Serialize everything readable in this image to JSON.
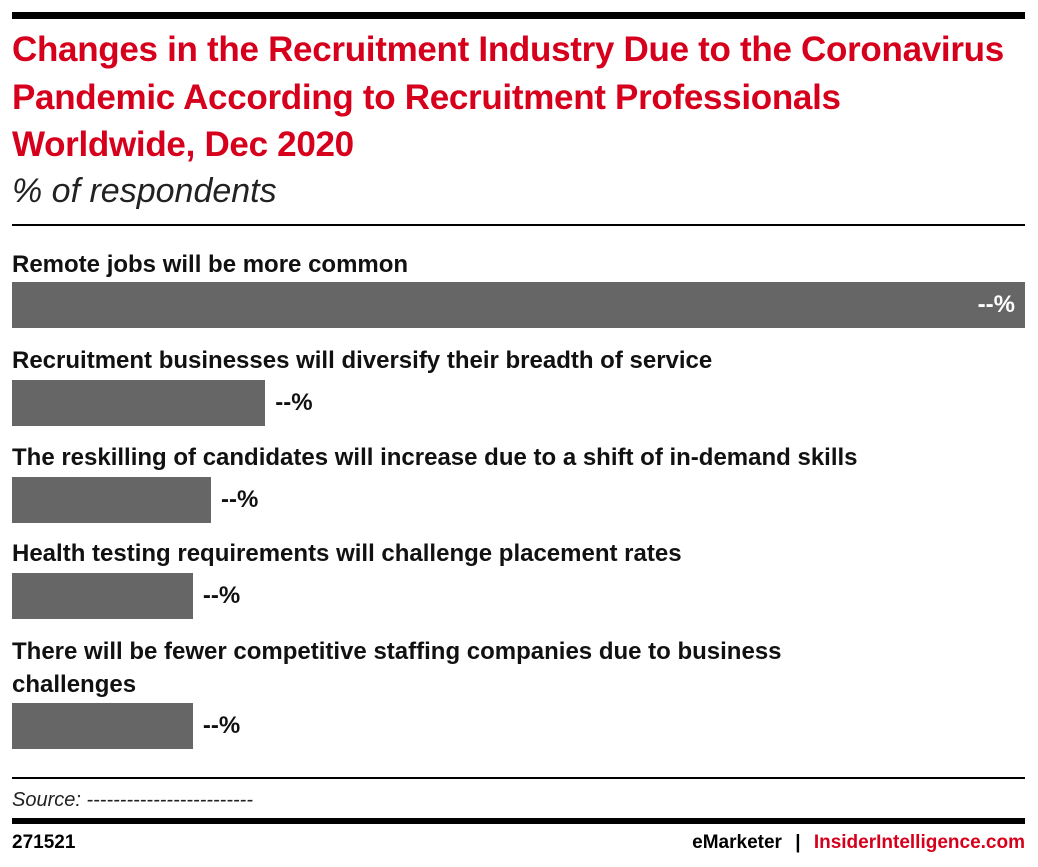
{
  "chart_data": {
    "type": "bar",
    "orientation": "horizontal",
    "title": "Changes in the Recruitment Industry Due to the Coronavirus Pandemic According to Recruitment Professionals Worldwide, Dec 2020",
    "subtitle": "% of respondents",
    "categories": [
      "Remote jobs will be more common",
      "Recruitment businesses will diversify their breadth of service",
      "The reskilling of candidates will increase due to a shift of in-demand skills",
      "Health testing requirements will challenge placement rates",
      "There will be fewer competitive staffing companies due to business challenges"
    ],
    "values": [
      56,
      14,
      11,
      10,
      10
    ],
    "value_labels": [
      "--%",
      "--%",
      "--%",
      "--%",
      "--%"
    ],
    "color": "#666666",
    "source": "Source: -------------------------"
  },
  "footer": {
    "id": "271521",
    "brand": "eMarketer",
    "separator": "|",
    "site": "InsiderIntelligence.com"
  }
}
